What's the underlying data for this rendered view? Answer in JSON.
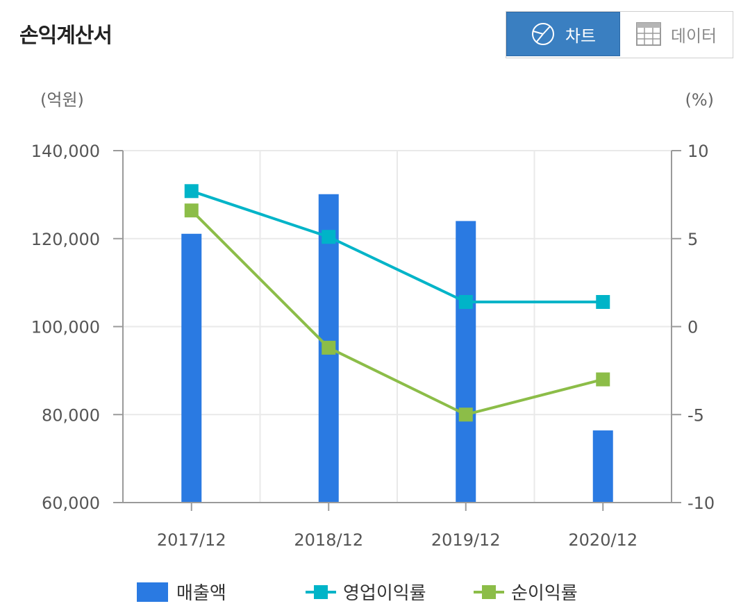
{
  "page_title": "손익계산서",
  "view_toggle": {
    "chart_label": "차트",
    "data_label": "데이터"
  },
  "icons": {
    "chart": "pie-chart-icon",
    "data": "table-grid-icon"
  },
  "colors": {
    "bar": "#2a7ae2",
    "operating_margin": "#00b4c8",
    "net_margin": "#8cbd48",
    "toggle_active": "#3a7fc1"
  },
  "chart_data": {
    "type": "bar",
    "title": "",
    "categories": [
      "2017/12",
      "2018/12",
      "2019/12",
      "2020/12"
    ],
    "y_left": {
      "unit_label": "(억원)",
      "range": [
        60000,
        140000
      ],
      "ticks": [
        60000,
        80000,
        100000,
        120000,
        140000
      ],
      "tick_labels": [
        "60,000",
        "80,000",
        "100,000",
        "120,000",
        "140,000"
      ]
    },
    "y_right": {
      "unit_label": "(%)",
      "range": [
        -10,
        10
      ],
      "ticks": [
        -10,
        -5,
        0,
        5,
        10
      ],
      "tick_labels": [
        "-10",
        "-5",
        "0",
        "5",
        "10"
      ]
    },
    "grid": true,
    "legend_position": "bottom",
    "series": [
      {
        "name": "매출액",
        "type": "bar",
        "axis": "left",
        "values": [
          121100,
          130100,
          124000,
          76400
        ]
      },
      {
        "name": "영업이익률",
        "type": "line",
        "axis": "right",
        "values": [
          7.7,
          5.1,
          1.4,
          1.4
        ]
      },
      {
        "name": "순이익률",
        "type": "line",
        "axis": "right",
        "values": [
          6.6,
          -1.2,
          -5.0,
          -3.0
        ]
      }
    ]
  }
}
